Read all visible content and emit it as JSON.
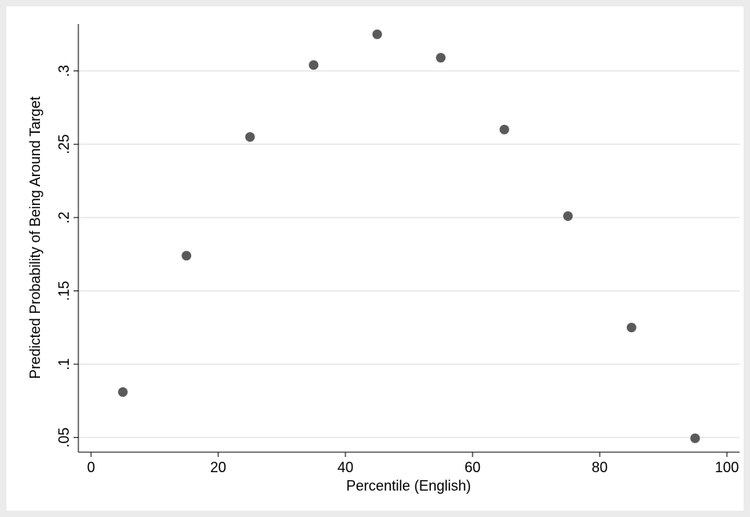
{
  "chart_data": {
    "type": "scatter",
    "x_label": "Percentile (English)",
    "y_label": "Predicted Probability of Being Around Target",
    "x": [
      5,
      15,
      25,
      35,
      45,
      55,
      65,
      75,
      85,
      95
    ],
    "values": [
      0.081,
      0.174,
      0.255,
      0.304,
      0.325,
      0.309,
      0.26,
      0.201,
      0.125,
      0.0495
    ],
    "color": "#5a5a5a",
    "xlim": [
      -2,
      102
    ],
    "xticks": [
      0,
      20,
      40,
      60,
      80,
      100
    ],
    "ylim": [
      0.04,
      0.332
    ],
    "yticks": [
      {
        "value": 0.05,
        "label": ".05"
      },
      {
        "value": 0.1,
        "label": ".1"
      },
      {
        "value": 0.15,
        "label": ".15"
      },
      {
        "value": 0.2,
        "label": ".2"
      },
      {
        "value": 0.25,
        "label": ".25"
      },
      {
        "value": 0.3,
        "label": ".3"
      }
    ],
    "grid": true
  }
}
